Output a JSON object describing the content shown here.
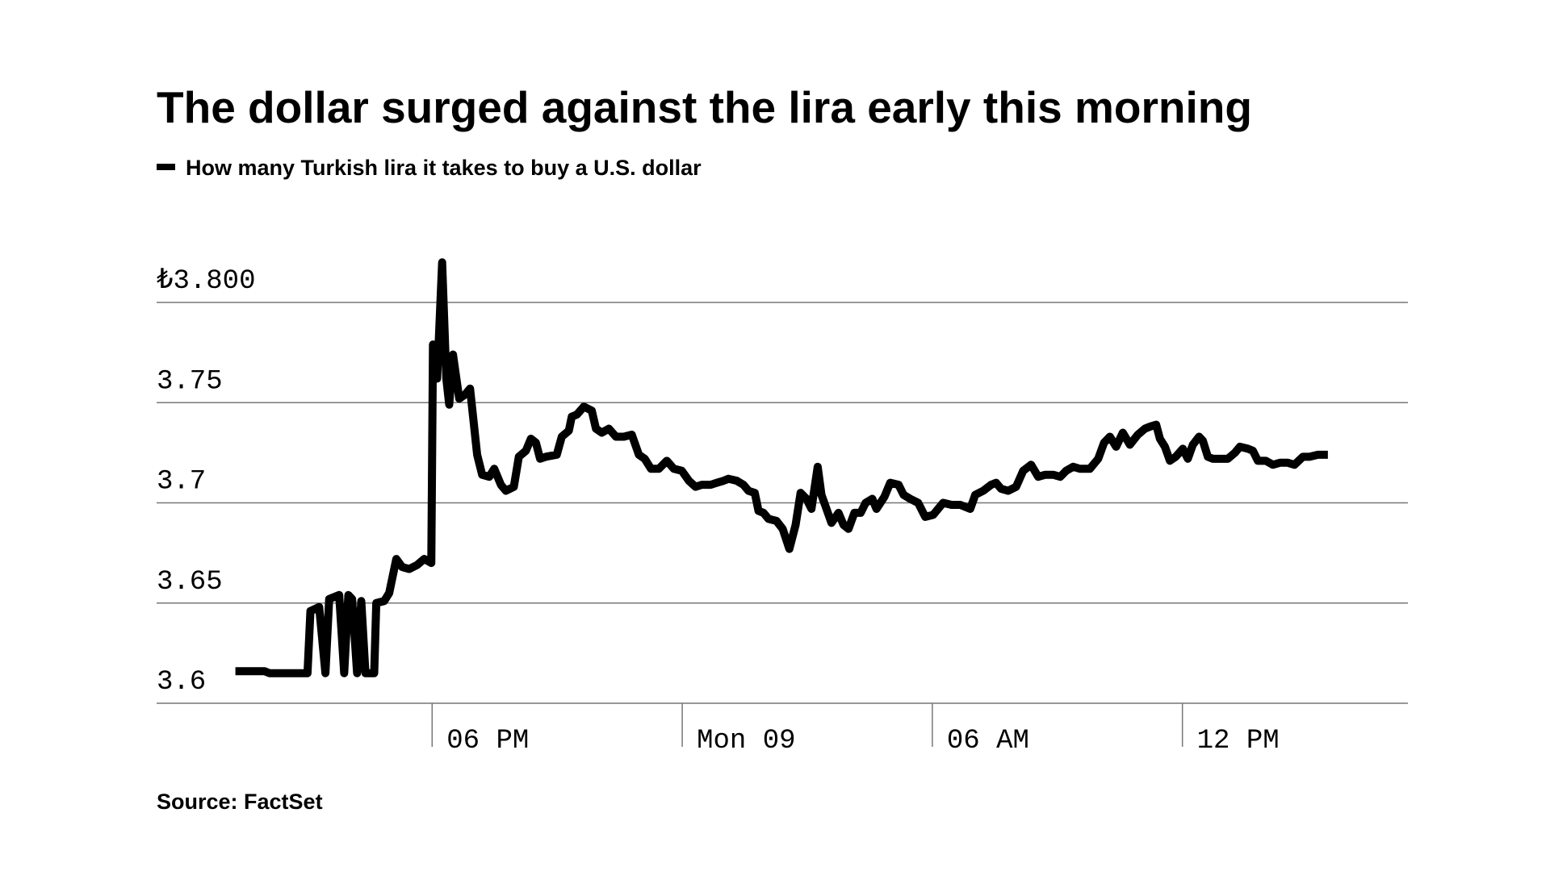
{
  "chart_data": {
    "type": "line",
    "title": "The dollar surged against the lira early this morning",
    "source": "Source: FactSet",
    "x": [
      13.28,
      13.98,
      14.1,
      15.01,
      15.08,
      15.29,
      15.44,
      15.53,
      15.77,
      15.89,
      15.99,
      16.08,
      16.2,
      16.3,
      16.4,
      16.61,
      16.66,
      16.85,
      16.97,
      17.14,
      17.28,
      17.45,
      17.64,
      17.81,
      17.98,
      18.02,
      18.12,
      18.24,
      18.34,
      18.41,
      18.5,
      18.65,
      18.79,
      18.91,
      19.08,
      19.2,
      19.37,
      19.49,
      19.65,
      19.77,
      19.96,
      20.08,
      20.25,
      20.37,
      20.49,
      20.59,
      20.73,
      20.99,
      21.11,
      21.28,
      21.35,
      21.47,
      21.64,
      21.83,
      21.93,
      22.07,
      22.24,
      22.41,
      22.6,
      22.79,
      22.96,
      23.1,
      23.25,
      23.44,
      23.63,
      23.8,
      23.99,
      24.16,
      24.32,
      24.47,
      24.68,
      24.83,
      24.99,
      25.11,
      25.31,
      25.47,
      25.59,
      25.74,
      25.83,
      25.95,
      26.07,
      26.26,
      26.41,
      26.57,
      26.72,
      26.84,
      26.98,
      27.1,
      27.25,
      27.34,
      27.46,
      27.58,
      27.75,
      27.87,
      27.99,
      28.13,
      28.28,
      28.4,
      28.56,
      28.66,
      28.85,
      28.99,
      29.19,
      29.31,
      29.47,
      29.66,
      29.83,
      30.02,
      30.14,
      30.26,
      30.46,
      30.67,
      30.91,
      31.03,
      31.22,
      31.41,
      31.53,
      31.65,
      31.82,
      32.01,
      32.18,
      32.37,
      32.54,
      32.71,
      32.9,
      33.07,
      33.21,
      33.38,
      33.54,
      33.78,
      33.98,
      34.12,
      34.26,
      34.41,
      34.57,
      34.74,
      34.93,
      35.1,
      35.22,
      35.37,
      35.46,
      35.58,
      35.7,
      35.84,
      36.01,
      36.13,
      36.25,
      36.4,
      36.49,
      36.61,
      36.73,
      36.9,
      37.09,
      37.26,
      37.38,
      37.57,
      37.69,
      37.81,
      38.0,
      38.17,
      38.34,
      38.53,
      38.69,
      38.89,
      39.05,
      39.25,
      39.49
    ],
    "series": [
      {
        "name": "How many Turkish lira it takes to buy a U.S. dollar",
        "color": "#000000",
        "values": [
          3.616,
          3.616,
          3.615,
          3.615,
          3.646,
          3.648,
          3.615,
          3.652,
          3.654,
          3.615,
          3.654,
          3.652,
          3.615,
          3.651,
          3.615,
          3.615,
          3.65,
          3.651,
          3.655,
          3.672,
          3.668,
          3.667,
          3.669,
          3.672,
          3.67,
          3.779,
          3.762,
          3.82,
          3.762,
          3.749,
          3.774,
          3.752,
          3.754,
          3.757,
          3.724,
          3.714,
          3.713,
          3.717,
          3.709,
          3.706,
          3.708,
          3.723,
          3.726,
          3.732,
          3.73,
          3.722,
          3.723,
          3.724,
          3.733,
          3.736,
          3.743,
          3.744,
          3.748,
          3.746,
          3.737,
          3.735,
          3.737,
          3.733,
          3.733,
          3.734,
          3.724,
          3.722,
          3.717,
          3.717,
          3.721,
          3.717,
          3.716,
          3.711,
          3.708,
          3.709,
          3.709,
          3.71,
          3.711,
          3.712,
          3.711,
          3.709,
          3.706,
          3.705,
          3.696,
          3.695,
          3.692,
          3.691,
          3.687,
          3.677,
          3.689,
          3.705,
          3.702,
          3.697,
          3.718,
          3.704,
          3.697,
          3.69,
          3.695,
          3.689,
          3.687,
          3.695,
          3.695,
          3.7,
          3.702,
          3.697,
          3.703,
          3.71,
          3.709,
          3.704,
          3.702,
          3.7,
          3.693,
          3.694,
          3.697,
          3.7,
          3.699,
          3.699,
          3.697,
          3.704,
          3.706,
          3.709,
          3.71,
          3.707,
          3.706,
          3.708,
          3.716,
          3.719,
          3.713,
          3.714,
          3.714,
          3.713,
          3.716,
          3.718,
          3.717,
          3.717,
          3.722,
          3.73,
          3.733,
          3.728,
          3.735,
          3.729,
          3.734,
          3.737,
          3.738,
          3.739,
          3.732,
          3.728,
          3.721,
          3.723,
          3.727,
          3.722,
          3.729,
          3.733,
          3.731,
          3.723,
          3.722,
          3.722,
          3.722,
          3.725,
          3.728,
          3.727,
          3.726,
          3.721,
          3.721,
          3.719,
          3.72,
          3.72,
          3.719,
          3.723,
          3.723,
          3.724,
          3.724
        ]
      }
    ],
    "xlim": [
      11.39,
      41.41
    ],
    "xticks": [
      {
        "value": 18,
        "label": "06 PM"
      },
      {
        "value": 24,
        "label": "Mon 09"
      },
      {
        "value": 30,
        "label": "06 AM"
      },
      {
        "value": 36,
        "label": "12 PM"
      }
    ],
    "ylim": [
      3.6,
      3.8
    ],
    "yticks": [
      3.6,
      3.65,
      3.7,
      3.75,
      {
        "value": 3.8,
        "label": "₺3.800"
      }
    ],
    "grid": true
  }
}
